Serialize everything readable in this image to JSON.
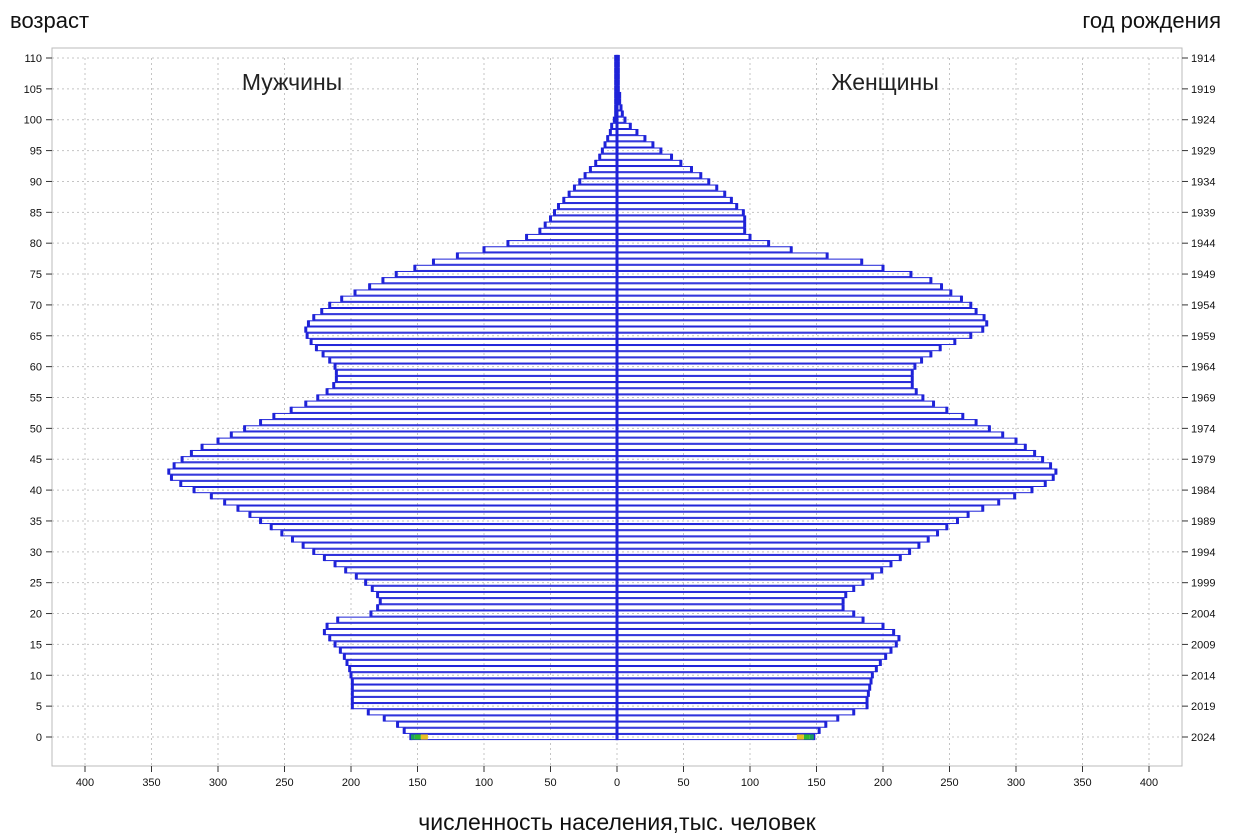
{
  "chart_data": {
    "type": "bar",
    "orientation": "horizontal",
    "title": "",
    "left_axis_label": "возраст",
    "right_axis_label": "год рождения",
    "xlabel": "численность населения,тыс. человек",
    "panel_labels": [
      "Мужчины",
      "Женщины"
    ],
    "xlim": [
      -400,
      400
    ],
    "ylim": [
      0,
      110
    ],
    "x_ticks": [
      400,
      350,
      300,
      250,
      200,
      150,
      100,
      50,
      0,
      50,
      100,
      150,
      200,
      250,
      300,
      350,
      400
    ],
    "y_ticks": [
      0,
      5,
      10,
      15,
      20,
      25,
      30,
      35,
      40,
      45,
      50,
      55,
      60,
      65,
      70,
      75,
      80,
      85,
      90,
      95,
      100,
      105,
      110
    ],
    "year_ticks": [
      "2024",
      "2019",
      "2014",
      "2009",
      "2004",
      "1999",
      "1994",
      "1989",
      "1984",
      "1979",
      "1974",
      "1969",
      "1964",
      "1959",
      "1954",
      "1949",
      "1944",
      "1939",
      "1934",
      "1929",
      "1924",
      "1919",
      "1914"
    ],
    "grid": true,
    "bar_color": "#1e22d8",
    "age0_band_colors": [
      "#1aa05a",
      "#2db82d",
      "#e8c020"
    ],
    "ages": [
      0,
      1,
      2,
      3,
      4,
      5,
      6,
      7,
      8,
      9,
      10,
      11,
      12,
      13,
      14,
      15,
      16,
      17,
      18,
      19,
      20,
      21,
      22,
      23,
      24,
      25,
      26,
      27,
      28,
      29,
      30,
      31,
      32,
      33,
      34,
      35,
      36,
      37,
      38,
      39,
      40,
      41,
      42,
      43,
      44,
      45,
      46,
      47,
      48,
      49,
      50,
      51,
      52,
      53,
      54,
      55,
      56,
      57,
      58,
      59,
      60,
      61,
      62,
      63,
      64,
      65,
      66,
      67,
      68,
      69,
      70,
      71,
      72,
      73,
      74,
      75,
      76,
      77,
      78,
      79,
      80,
      81,
      82,
      83,
      84,
      85,
      86,
      87,
      88,
      89,
      90,
      91,
      92,
      93,
      94,
      95,
      96,
      97,
      98,
      99,
      100,
      101,
      102,
      103,
      104,
      105,
      106,
      107,
      108,
      109,
      110
    ],
    "series": [
      {
        "name": "Мужчины",
        "values": [
          155,
          160,
          165,
          175,
          187,
          199,
          199,
          199,
          199,
          199,
          200,
          201,
          203,
          205,
          208,
          212,
          216,
          220,
          218,
          210,
          185,
          180,
          178,
          180,
          184,
          189,
          196,
          204,
          212,
          220,
          228,
          236,
          244,
          252,
          260,
          268,
          276,
          285,
          295,
          305,
          318,
          328,
          335,
          337,
          333,
          327,
          320,
          312,
          300,
          290,
          280,
          268,
          258,
          245,
          234,
          225,
          218,
          213,
          211,
          211,
          212,
          216,
          221,
          226,
          230,
          233,
          234,
          232,
          228,
          222,
          216,
          207,
          197,
          186,
          176,
          166,
          152,
          138,
          120,
          100,
          82,
          68,
          58,
          54,
          50,
          47,
          44,
          40,
          36,
          32,
          28,
          24,
          20,
          16,
          13,
          11,
          9,
          7,
          5,
          4,
          2,
          1,
          1,
          1,
          1,
          1,
          1,
          1,
          1,
          1,
          1
        ]
      },
      {
        "name": "Женщины",
        "values": [
          148,
          152,
          157,
          166,
          178,
          188,
          188,
          189,
          190,
          191,
          192,
          195,
          198,
          202,
          206,
          210,
          212,
          208,
          200,
          185,
          178,
          170,
          170,
          172,
          178,
          185,
          192,
          199,
          206,
          213,
          220,
          227,
          234,
          241,
          248,
          256,
          264,
          275,
          287,
          299,
          312,
          322,
          328,
          330,
          326,
          320,
          314,
          307,
          300,
          290,
          280,
          270,
          260,
          248,
          238,
          230,
          225,
          222,
          222,
          222,
          224,
          229,
          236,
          243,
          254,
          266,
          275,
          278,
          276,
          270,
          266,
          259,
          251,
          244,
          236,
          221,
          200,
          184,
          158,
          131,
          114,
          100,
          96,
          96,
          96,
          95,
          90,
          86,
          81,
          75,
          69,
          63,
          56,
          48,
          41,
          33,
          27,
          21,
          15,
          10,
          6,
          4,
          3,
          2,
          2,
          1,
          1,
          1,
          1,
          1,
          1
        ]
      }
    ]
  }
}
